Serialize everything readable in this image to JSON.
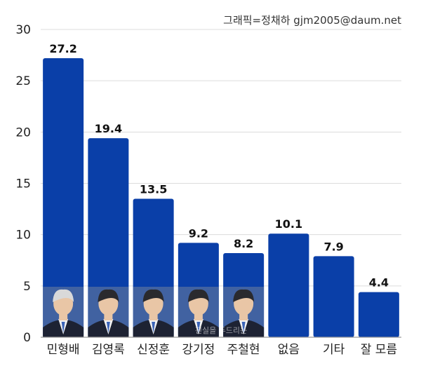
{
  "credit": "그래픽=정채하 gjm2005@daum.net",
  "watermark": "진실을 두드리는",
  "colors": {
    "bar": "#0a3fa8",
    "skin": "#e9c6a6",
    "hair": "#2a2a2e",
    "suit": "#1d2233"
  },
  "chart_data": {
    "type": "bar",
    "title": "",
    "xlabel": "",
    "ylabel": "",
    "ylim": [
      0,
      30
    ],
    "yticks": [
      0,
      5,
      10,
      15,
      20,
      25,
      30
    ],
    "grid": true,
    "categories": [
      "민형배",
      "김영록",
      "신정훈",
      "강기정",
      "주철현",
      "없음",
      "기타",
      "잘 모름"
    ],
    "values": [
      27.2,
      19.4,
      13.5,
      9.2,
      8.2,
      10.1,
      7.9,
      4.4
    ],
    "value_labels": [
      "27.2",
      "19.4",
      "13.5",
      "9.2",
      "8.2",
      "10.1",
      "7.9",
      "4.4"
    ],
    "portraits": [
      true,
      true,
      true,
      true,
      true,
      false,
      false,
      false
    ]
  }
}
